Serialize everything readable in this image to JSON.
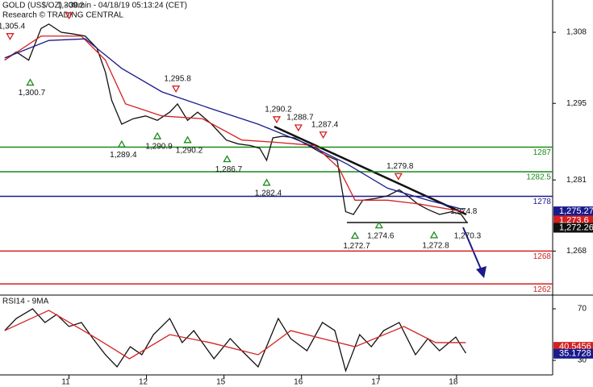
{
  "chart_data": [
    {
      "type": "line",
      "title": "GOLD (US$/OZ) - 30min - 04/18/19 05:13:24 (CET)",
      "subtitle": "Research © TRADING CENTRAL",
      "xlim": [
        0.11,
        7.24
      ],
      "ylim": [
        1260.1,
        1313.9
      ],
      "yticks": [
        {
          "value": 1308,
          "label": "1,308"
        },
        {
          "value": 1295,
          "label": "1,295"
        },
        {
          "value": 1281,
          "label": "1,281"
        },
        {
          "value": 1268,
          "label": "1,268"
        }
      ],
      "series": [
        {
          "color": "#111111",
          "x": [
            0.17,
            0.32,
            0.48,
            0.64,
            0.74,
            0.9,
            1.05,
            1.21,
            1.36,
            1.47,
            1.55,
            1.68,
            1.83,
            1.99,
            2.14,
            2.3,
            2.4,
            2.53,
            2.66,
            2.84,
            3.03,
            3.18,
            3.34,
            3.46,
            3.55,
            3.63,
            3.76,
            3.91,
            4.05,
            4.19,
            4.33,
            4.46,
            4.57,
            4.67,
            4.79,
            4.95,
            5.11,
            5.26,
            5.37,
            5.5,
            5.63,
            5.78,
            5.94,
            6.06,
            6.13
          ],
          "values": [
            1302.9,
            1304.4,
            1302.9,
            1308.7,
            1309.5,
            1308,
            1307.7,
            1307.3,
            1305.1,
            1300.7,
            1295.6,
            1291.2,
            1292.2,
            1292.7,
            1291.9,
            1293.4,
            1294.9,
            1291.9,
            1293.4,
            1291.2,
            1288.3,
            1287.6,
            1287.3,
            1286.8,
            1284.6,
            1288.7,
            1289,
            1288.7,
            1287.6,
            1286.5,
            1285.4,
            1284.6,
            1275.2,
            1274.7,
            1277.3,
            1277.6,
            1278.1,
            1279.2,
            1278.1,
            1276.6,
            1275.6,
            1274.7,
            1275.2,
            1274.7,
            1273.3
          ]
        },
        {
          "color": "#d42020",
          "x": [
            0.17,
            0.64,
            1.16,
            1.47,
            1.73,
            2.2,
            2.72,
            3.23,
            3.65,
            4.17,
            4.48,
            4.69,
            5.11,
            5.52,
            6.09
          ],
          "values": [
            1302.9,
            1307.3,
            1307.3,
            1302.9,
            1294.9,
            1292.7,
            1292.2,
            1288.3,
            1287.9,
            1287.3,
            1283.2,
            1277.3,
            1277.3,
            1276.6,
            1275.2
          ]
        },
        {
          "color": "#1a1a8c",
          "x": [
            0.17,
            0.74,
            1.21,
            1.68,
            2.2,
            2.82,
            3.44,
            4.07,
            4.59,
            5.11,
            5.63,
            6.09
          ],
          "values": [
            1303.3,
            1306.5,
            1306.8,
            1301.4,
            1297.1,
            1294.1,
            1291.2,
            1287.6,
            1283.9,
            1279.5,
            1277.3,
            1275.6
          ]
        }
      ],
      "levels": [
        {
          "value": 1287,
          "label": "1287",
          "color": "#1a8a1a"
        },
        {
          "value": 1282.5,
          "label": "1282.5",
          "color": "#1a8a1a"
        },
        {
          "value": 1278,
          "label": "1278",
          "color": "#1a1a8c"
        },
        {
          "value": 1268,
          "label": "1268",
          "color": "#d42020"
        },
        {
          "value": 1262,
          "label": "1262",
          "color": "#d42020"
        }
      ],
      "pivots": [
        {
          "x": 0.24,
          "value": 1305.4,
          "label": "1,305.4",
          "marker": "down"
        },
        {
          "x": 1.0,
          "value": 1309.2,
          "label": "1,309.2",
          "marker": "down"
        },
        {
          "x": 0.5,
          "value": 1300.7,
          "label": "1,300.7",
          "marker": "up"
        },
        {
          "x": 2.38,
          "value": 1295.8,
          "label": "1,295.8",
          "marker": "down"
        },
        {
          "x": 1.68,
          "value": 1289.4,
          "label": "1,289.4",
          "marker": "up"
        },
        {
          "x": 2.14,
          "value": 1290.9,
          "label": "1,290.9",
          "marker": "up"
        },
        {
          "x": 2.53,
          "value": 1290.2,
          "label": "1,290.2",
          "marker": "up"
        },
        {
          "x": 3.04,
          "value": 1286.7,
          "label": "1,286.7",
          "marker": "up"
        },
        {
          "x": 3.55,
          "value": 1282.4,
          "label": "1,282.4",
          "marker": "up"
        },
        {
          "x": 3.68,
          "value": 1290.2,
          "label": "1,290.2",
          "marker": "down"
        },
        {
          "x": 3.96,
          "value": 1288.7,
          "label": "1,288.7",
          "marker": "down"
        },
        {
          "x": 4.28,
          "value": 1287.4,
          "label": "1,287.4",
          "marker": "down"
        },
        {
          "x": 5.25,
          "value": 1279.8,
          "label": "1,279.8",
          "marker": "down"
        },
        {
          "x": 6.05,
          "value": 1274.8,
          "label": "1,274.8"
        },
        {
          "x": 4.69,
          "value": 1272.7,
          "label": "1,272.7",
          "marker": "up"
        },
        {
          "x": 5.0,
          "value": 1274.6,
          "label": "1,274.6",
          "marker": "up"
        },
        {
          "x": 5.71,
          "value": 1272.8,
          "label": "1,272.8",
          "marker": "up"
        },
        {
          "x": 6.1,
          "value": 1270.3,
          "label": "1,270.3"
        }
      ],
      "price_tags": [
        {
          "value": 1275.27,
          "label": "1,275.27",
          "color": "#1a1a8c"
        },
        {
          "value": 1273.6,
          "label": "1,273.6",
          "color": "#d42020"
        },
        {
          "value": 1272.26,
          "label": "1,272.26",
          "color": "#111111"
        }
      ]
    },
    {
      "type": "line",
      "title": "RSI14 - 9MA",
      "xlim": [
        0.11,
        7.24
      ],
      "xticks": [
        {
          "value": 1,
          "label": "11"
        },
        {
          "value": 2,
          "label": "12"
        },
        {
          "value": 3,
          "label": "15"
        },
        {
          "value": 4,
          "label": "16"
        },
        {
          "value": 5,
          "label": "17"
        },
        {
          "value": 6,
          "label": "18"
        }
      ],
      "ylim": [
        18.75,
        79.4
      ],
      "yticks": [
        30,
        70
      ],
      "series": [
        {
          "color": "#111111",
          "x": [
            0.17,
            0.32,
            0.53,
            0.69,
            0.84,
            1.0,
            1.16,
            1.31,
            1.47,
            1.62,
            1.79,
            1.94,
            2.09,
            2.3,
            2.46,
            2.61,
            2.87,
            3.08,
            3.23,
            3.44,
            3.7,
            3.86,
            4.07,
            4.27,
            4.43,
            4.57,
            4.75,
            4.9,
            5.06,
            5.26,
            5.47,
            5.63,
            5.78,
            5.99,
            6.12
          ],
          "values": [
            53.1,
            62.5,
            70,
            59.4,
            65.6,
            56.3,
            59.4,
            46.9,
            34.4,
            25,
            40.6,
            34.4,
            50,
            62.5,
            43.8,
            53.1,
            31.3,
            46.9,
            37.5,
            25,
            62.5,
            46.9,
            37.5,
            59.4,
            53.1,
            21.9,
            50,
            40.6,
            53.1,
            59.4,
            34.4,
            46.9,
            37.5,
            48.1,
            35.6
          ]
        },
        {
          "color": "#d42020",
          "x": [
            0.17,
            0.74,
            1.36,
            1.78,
            2.3,
            2.82,
            3.44,
            3.86,
            4.27,
            4.69,
            5.32,
            5.73,
            6.12
          ],
          "values": [
            53.1,
            68.8,
            46.9,
            31.3,
            50,
            43.8,
            34.4,
            53.1,
            46.9,
            40.6,
            56.3,
            43.8,
            43.8
          ]
        }
      ],
      "price_tags": [
        {
          "value": 40.5456,
          "label": "40.5456",
          "color": "#d42020"
        },
        {
          "value": 35.1728,
          "label": "35.1728",
          "color": "#1a1a8c"
        }
      ]
    }
  ]
}
